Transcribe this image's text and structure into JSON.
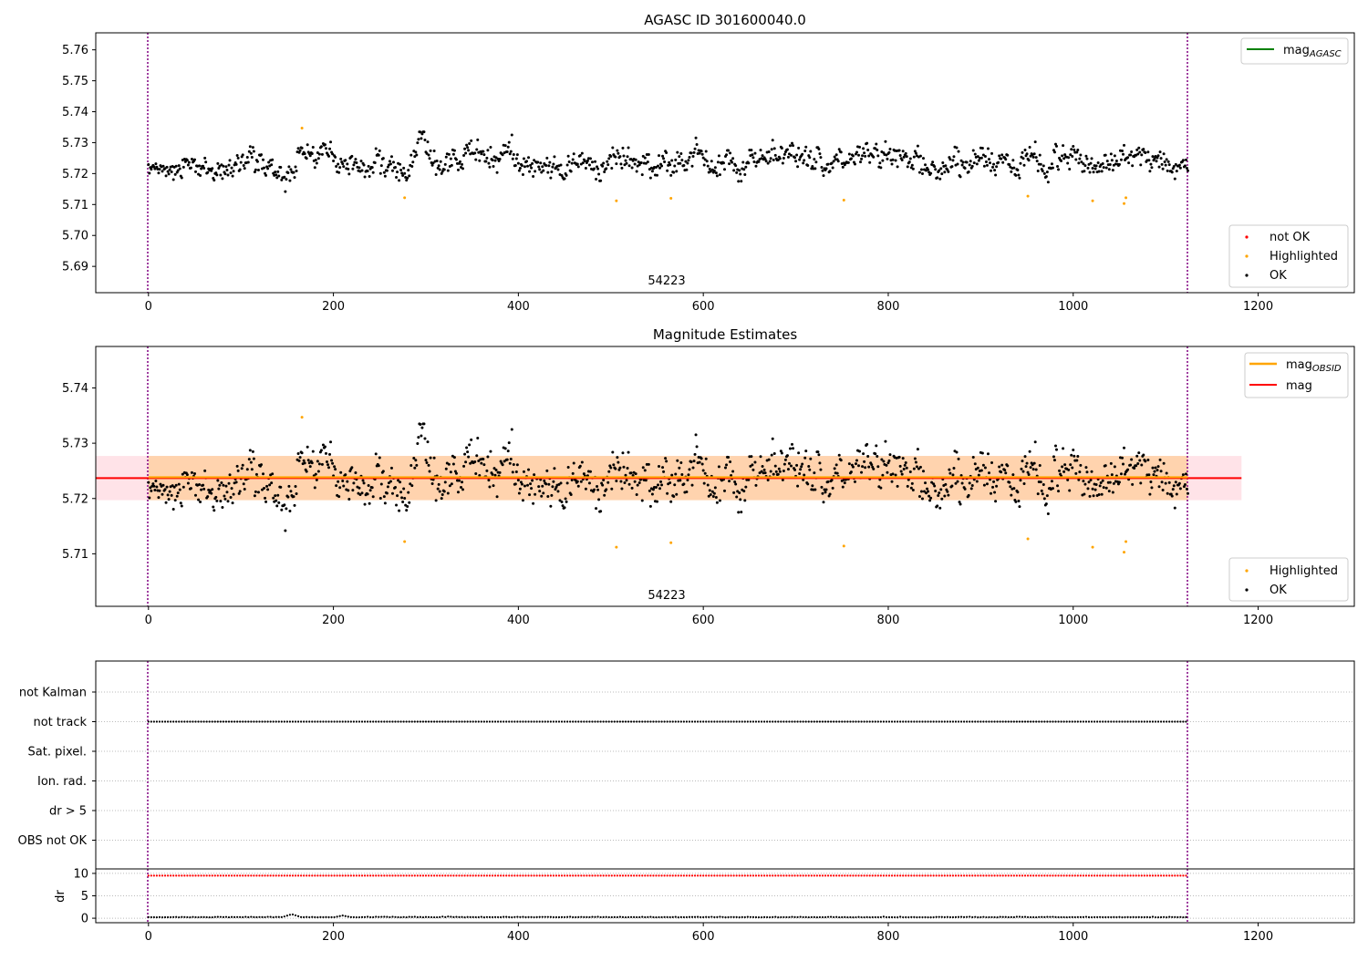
{
  "figure": {
    "title": "AGASC ID 301600040.0",
    "axes": [
      {
        "id": "top",
        "title": "AGASC ID 301600040.0",
        "annotation": "54223",
        "xticks": [
          "0",
          "200",
          "400",
          "600",
          "800",
          "1000",
          "1200"
        ],
        "yticks": [
          "5.69",
          "5.70",
          "5.71",
          "5.72",
          "5.73",
          "5.74",
          "5.75",
          "5.76"
        ],
        "legend_lines": [
          {
            "label": "mag",
            "subscript": "AGASC",
            "color": "#008000"
          }
        ],
        "legend_markers": [
          {
            "label": "not OK",
            "color": "#ff0000"
          },
          {
            "label": "Highlighted",
            "color": "#ffa500"
          },
          {
            "label": "OK",
            "color": "#000000"
          }
        ]
      },
      {
        "id": "middle",
        "title": "Magnitude Estimates",
        "annotation": "54223",
        "xticks": [
          "0",
          "200",
          "400",
          "600",
          "800",
          "1000",
          "1200"
        ],
        "yticks": [
          "5.71",
          "5.72",
          "5.73",
          "5.74"
        ],
        "legend_lines": [
          {
            "label": "mag",
            "subscript": "OBSID",
            "color": "#ffa500"
          },
          {
            "label": "mag",
            "subscript": "",
            "color": "#ff0000"
          }
        ],
        "legend_markers": [
          {
            "label": "Highlighted",
            "color": "#ffa500"
          },
          {
            "label": "OK",
            "color": "#000000"
          }
        ]
      },
      {
        "id": "flags",
        "ylabels": [
          "not Kalman",
          "not track",
          "Sat. pixel.",
          "Ion. rad.",
          "dr > 5",
          "OBS not OK"
        ]
      },
      {
        "id": "dr",
        "ylabel": "dr",
        "xticks": [
          "0",
          "200",
          "400",
          "600",
          "800",
          "1000",
          "1200"
        ],
        "yticks": [
          "0",
          "5",
          "10"
        ]
      }
    ]
  },
  "chart_data": [
    {
      "type": "scatter",
      "title": "AGASC ID 301600040.0",
      "xlabel": "",
      "ylabel": "",
      "xlim": [
        -57,
        1304
      ],
      "ylim": [
        5.6815,
        5.7655
      ],
      "grid": false,
      "legend_placement": [
        "top-right",
        "bottom-right"
      ],
      "n_points": 1125,
      "observation_bounds": [
        0,
        1124
      ],
      "observation_label": "54223",
      "mag_agasc": null,
      "series": [
        {
          "name": "OK",
          "color": "#000000",
          "center": 5.7237,
          "spread": 0.0034
        },
        {
          "name": "Highlighted",
          "color": "#ffa500",
          "points": [
            [
              166,
              5.7347
            ],
            [
              277,
              5.7122
            ],
            [
              506,
              5.7112
            ],
            [
              565,
              5.712
            ],
            [
              752,
              5.7114
            ],
            [
              951,
              5.7127
            ],
            [
              1021,
              5.7112
            ],
            [
              1055,
              5.7103
            ],
            [
              1057,
              5.7122
            ]
          ]
        },
        {
          "name": "not OK",
          "color": "#ff0000",
          "points": []
        }
      ]
    },
    {
      "type": "scatter",
      "title": "Magnitude Estimates",
      "xlabel": "",
      "ylabel": "",
      "xlim": [
        -57,
        1304
      ],
      "ylim": [
        5.7005,
        5.7475
      ],
      "grid": false,
      "legend_placement": [
        "top-right",
        "bottom-right"
      ],
      "mag": 5.7237,
      "mag_band_1": [
        5.7218,
        5.7256
      ],
      "mag_band_2": [
        5.7197,
        5.7277
      ],
      "mag_line_x": [
        -57,
        1182
      ],
      "mag_obsid": 5.7237,
      "mag_obsid_x": [
        0,
        1124
      ],
      "series_ref": "same points as the top panel",
      "series": [
        {
          "name": "OK",
          "color": "#000000"
        },
        {
          "name": "Highlighted",
          "color": "#ffa500"
        }
      ]
    },
    {
      "type": "scatter",
      "title": "",
      "categories": [
        "not Kalman",
        "not track",
        "Sat. pixel.",
        "Ion. rad.",
        "dr > 5",
        "OBS not OK"
      ],
      "xlim": [
        -57,
        1304
      ],
      "grid": true,
      "series": [
        {
          "name": "not track",
          "color": "#000000",
          "x_range": [
            0,
            1124
          ]
        }
      ]
    },
    {
      "type": "scatter",
      "title": "",
      "xlabel": "",
      "ylabel": "dr",
      "xlim": [
        -57,
        1304
      ],
      "ylim": [
        -1,
        11
      ],
      "grid": true,
      "series": [
        {
          "name": "reference",
          "color": "#ff0000",
          "value": 9.5,
          "x_range": [
            0,
            1124
          ]
        },
        {
          "name": "dr",
          "color": "#000000",
          "typical": 0.2,
          "peaks": [
            [
              155,
              0.9
            ],
            [
              210,
              0.6
            ]
          ]
        }
      ]
    }
  ]
}
